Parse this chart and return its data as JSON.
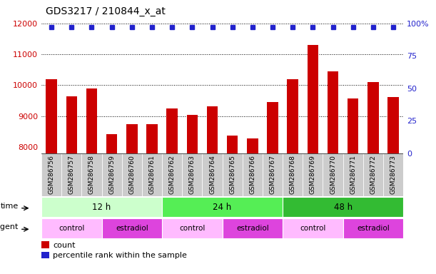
{
  "title": "GDS3217 / 210844_x_at",
  "samples": [
    "GSM286756",
    "GSM286757",
    "GSM286758",
    "GSM286759",
    "GSM286760",
    "GSM286761",
    "GSM286762",
    "GSM286763",
    "GSM286764",
    "GSM286765",
    "GSM286766",
    "GSM286767",
    "GSM286768",
    "GSM286769",
    "GSM286770",
    "GSM286771",
    "GSM286772",
    "GSM286773"
  ],
  "counts": [
    10200,
    9650,
    9900,
    8420,
    8750,
    8750,
    9250,
    9050,
    9320,
    8380,
    8280,
    9450,
    10200,
    11300,
    10450,
    9580,
    10100,
    9620
  ],
  "bar_color": "#cc0000",
  "dot_color": "#2222cc",
  "ylim_left": [
    7800,
    12000
  ],
  "ylim_right": [
    0,
    100
  ],
  "yticks_left": [
    8000,
    9000,
    10000,
    11000,
    12000
  ],
  "yticks_right": [
    0,
    25,
    50,
    75,
    100
  ],
  "grid_yticks": [
    9000,
    10000,
    11000,
    12000
  ],
  "percentile_value": 97,
  "time_groups": [
    {
      "label": "12 h",
      "start": 0,
      "end": 5,
      "color": "#ccffcc"
    },
    {
      "label": "24 h",
      "start": 6,
      "end": 11,
      "color": "#55ee55"
    },
    {
      "label": "48 h",
      "start": 12,
      "end": 17,
      "color": "#33bb33"
    }
  ],
  "agent_groups": [
    {
      "label": "control",
      "start": 0,
      "end": 2,
      "color": "#ffbbff"
    },
    {
      "label": "estradiol",
      "start": 3,
      "end": 5,
      "color": "#dd44dd"
    },
    {
      "label": "control",
      "start": 6,
      "end": 8,
      "color": "#ffbbff"
    },
    {
      "label": "estradiol",
      "start": 9,
      "end": 11,
      "color": "#dd44dd"
    },
    {
      "label": "control",
      "start": 12,
      "end": 14,
      "color": "#ffbbff"
    },
    {
      "label": "estradiol",
      "start": 15,
      "end": 17,
      "color": "#dd44dd"
    }
  ],
  "legend_count_color": "#cc0000",
  "legend_rank_color": "#2222cc",
  "bg_color": "#ffffff",
  "xticklabel_bg": "#cccccc",
  "title_fontsize": 10,
  "axis_fontsize": 8,
  "bar_width": 0.55
}
